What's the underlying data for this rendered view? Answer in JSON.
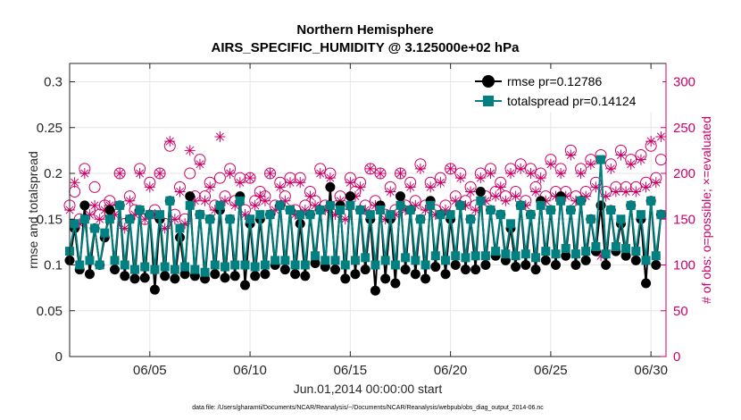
{
  "chart_data": {
    "type": "line",
    "title": "Northern Hemisphere",
    "subtitle": "AIRS_SPECIFIC_HUMIDITY @ 3.125000e+02 hPa",
    "xlabel": "Jun.01,2014 00:00:00 start",
    "ylabel": "rmse and totalspread",
    "ylabel_right": "# of obs: o=possible; ×=evaluated",
    "footnote": "data file: /Users/gharamti/Documents/NCAR/Reanalysis/~/Documents/NCAR/Reanalysis/webpub/obs_diag_output_2014-06.nc",
    "x_range": [
      1.0,
      30.75
    ],
    "ylim": [
      0,
      0.32
    ],
    "ylim_right": [
      0,
      320
    ],
    "xticks": [
      5,
      10,
      15,
      20,
      25,
      30
    ],
    "xtick_labels": [
      "06/05",
      "06/10",
      "06/15",
      "06/20",
      "06/25",
      "06/30"
    ],
    "yticks": [
      0,
      0.05,
      0.1,
      0.15,
      0.2,
      0.25,
      0.3
    ],
    "ytick_labels": [
      "0",
      "0.05",
      "0.1",
      "0.15",
      "0.2",
      "0.25",
      "0.3"
    ],
    "yticks_right": [
      0,
      50,
      100,
      150,
      200,
      250,
      300
    ],
    "ytick_right_labels": [
      "0",
      "50",
      "100",
      "150",
      "200",
      "250",
      "300"
    ],
    "grid": true,
    "legend_position": "top-right",
    "x_start": 1.0,
    "x_step": 0.25,
    "series": [
      {
        "name": "rmse pr=0.12786",
        "color": "#000000",
        "marker": "circle",
        "values": [
          0.105,
          0.14,
          0.095,
          0.165,
          0.09,
          0.14,
          0.1,
          0.13,
          0.16,
          0.095,
          0.165,
          0.088,
          0.15,
          0.085,
          0.16,
          0.086,
          0.155,
          0.073,
          0.15,
          0.088,
          0.17,
          0.085,
          0.13,
          0.09,
          0.175,
          0.088,
          0.155,
          0.085,
          0.15,
          0.09,
          0.16,
          0.086,
          0.15,
          0.088,
          0.175,
          0.078,
          0.145,
          0.088,
          0.15,
          0.09,
          0.155,
          0.1,
          0.165,
          0.095,
          0.16,
          0.09,
          0.145,
          0.088,
          0.155,
          0.102,
          0.16,
          0.098,
          0.185,
          0.095,
          0.165,
          0.085,
          0.175,
          0.09,
          0.16,
          0.095,
          0.15,
          0.072,
          0.165,
          0.085,
          0.15,
          0.08,
          0.175,
          0.095,
          0.16,
          0.09,
          0.15,
          0.085,
          0.17,
          0.098,
          0.155,
          0.09,
          0.15,
          0.1,
          0.165,
          0.095,
          0.15,
          0.095,
          0.18,
          0.1,
          0.16,
          0.11,
          0.155,
          0.105,
          0.14,
          0.098,
          0.165,
          0.1,
          0.155,
          0.095,
          0.17,
          0.105,
          0.16,
          0.1,
          0.175,
          0.11,
          0.16,
          0.1,
          0.17,
          0.105,
          0.15,
          0.115,
          0.165,
          0.1,
          0.16,
          0.115,
          0.145,
          0.11,
          0.165,
          0.105,
          0.15,
          0.08,
          0.17,
          0.1,
          0.155
        ]
      },
      {
        "name": "totalspread pr=0.14124",
        "color": "#008080",
        "marker": "square",
        "values": [
          0.115,
          0.145,
          0.1,
          0.15,
          0.105,
          0.14,
          0.1,
          0.135,
          0.15,
          0.105,
          0.165,
          0.1,
          0.15,
          0.095,
          0.16,
          0.098,
          0.155,
          0.095,
          0.155,
          0.098,
          0.17,
          0.095,
          0.14,
          0.098,
          0.165,
          0.095,
          0.155,
          0.092,
          0.15,
          0.1,
          0.165,
          0.098,
          0.15,
          0.1,
          0.17,
          0.1,
          0.15,
          0.098,
          0.155,
          0.1,
          0.155,
          0.105,
          0.165,
          0.105,
          0.16,
          0.1,
          0.155,
          0.1,
          0.155,
          0.11,
          0.16,
          0.105,
          0.165,
          0.105,
          0.16,
          0.1,
          0.165,
          0.105,
          0.16,
          0.108,
          0.155,
          0.1,
          0.16,
          0.105,
          0.155,
          0.1,
          0.165,
          0.108,
          0.16,
          0.105,
          0.15,
          0.1,
          0.165,
          0.11,
          0.155,
          0.105,
          0.155,
          0.11,
          0.165,
          0.108,
          0.15,
          0.11,
          0.17,
          0.11,
          0.16,
          0.115,
          0.155,
          0.112,
          0.145,
          0.11,
          0.165,
          0.112,
          0.155,
          0.108,
          0.165,
          0.115,
          0.16,
          0.112,
          0.17,
          0.118,
          0.16,
          0.112,
          0.17,
          0.115,
          0.15,
          0.12,
          0.215,
          0.112,
          0.16,
          0.12,
          0.15,
          0.118,
          0.165,
          0.115,
          0.155,
          0.105,
          0.17,
          0.11,
          0.155
        ]
      },
      {
        "name": "possible",
        "axis": "right",
        "color": "#cc0066",
        "marker": "open-circle",
        "values": [
          165,
          180,
          150,
          205,
          160,
          185,
          155,
          165,
          170,
          160,
          200,
          145,
          175,
          160,
          205,
          150,
          190,
          160,
          200,
          145,
          230,
          155,
          185,
          150,
          200,
          175,
          215,
          175,
          190,
          165,
          195,
          175,
          205,
          170,
          195,
          160,
          195,
          170,
          180,
          175,
          200,
          165,
          190,
          175,
          195,
          160,
          195,
          165,
          180,
          170,
          205,
          165,
          200,
          160,
          175,
          155,
          195,
          180,
          190,
          165,
          205,
          170,
          200,
          155,
          185,
          160,
          200,
          165,
          190,
          170,
          210,
          165,
          190,
          160,
          195,
          165,
          205,
          175,
          200,
          170,
          185,
          165,
          200,
          175,
          205,
          180,
          190,
          175,
          205,
          180,
          210,
          170,
          205,
          185,
          200,
          175,
          215,
          180,
          205,
          180,
          225,
          175,
          205,
          180,
          215,
          190,
          220,
          180,
          210,
          185,
          225,
          185,
          215,
          185,
          220,
          190,
          230,
          195,
          215
        ]
      },
      {
        "name": "evaluated",
        "axis": "right",
        "color": "#cc0066",
        "marker": "star",
        "values": [
          160,
          190,
          145,
          200,
          155,
          165,
          150,
          160,
          165,
          155,
          200,
          140,
          170,
          155,
          200,
          150,
          185,
          155,
          200,
          140,
          235,
          150,
          180,
          145,
          225,
          170,
          210,
          170,
          185,
          160,
          240,
          170,
          200,
          165,
          190,
          155,
          195,
          165,
          175,
          170,
          200,
          160,
          185,
          170,
          190,
          155,
          190,
          160,
          175,
          165,
          200,
          160,
          195,
          155,
          170,
          150,
          190,
          175,
          185,
          160,
          205,
          165,
          200,
          150,
          180,
          155,
          200,
          160,
          185,
          165,
          205,
          160,
          185,
          155,
          190,
          160,
          205,
          170,
          195,
          165,
          180,
          160,
          195,
          170,
          200,
          175,
          185,
          170,
          200,
          175,
          205,
          165,
          200,
          180,
          195,
          170,
          210,
          175,
          200,
          175,
          220,
          170,
          200,
          175,
          210,
          185,
          110,
          175,
          205,
          180,
          220,
          180,
          210,
          180,
          215,
          185,
          235,
          190,
          240
        ]
      }
    ]
  }
}
